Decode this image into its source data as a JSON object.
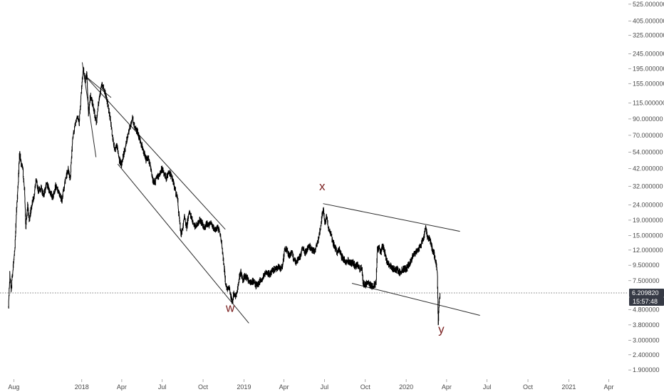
{
  "chart_data": {
    "type": "line",
    "title": "",
    "xlabel": "",
    "ylabel": "",
    "y_scale": "log",
    "ylim": [
      1.65,
      560
    ],
    "xlim": [
      "2017-07-01",
      "2021-05-15"
    ],
    "grid": false,
    "x_ticks": [
      {
        "label": "Aug",
        "date": "2017-08-01"
      },
      {
        "label": "2018",
        "date": "2018-01-01"
      },
      {
        "label": "Apr",
        "date": "2018-04-01"
      },
      {
        "label": "Jul",
        "date": "2018-07-01"
      },
      {
        "label": "Oct",
        "date": "2018-10-01"
      },
      {
        "label": "2019",
        "date": "2019-01-01"
      },
      {
        "label": "Apr",
        "date": "2019-04-01"
      },
      {
        "label": "Jul",
        "date": "2019-07-01"
      },
      {
        "label": "Oct",
        "date": "2019-10-01"
      },
      {
        "label": "2020",
        "date": "2020-01-01"
      },
      {
        "label": "Apr",
        "date": "2020-04-01"
      },
      {
        "label": "Jul",
        "date": "2020-07-01"
      },
      {
        "label": "Oct",
        "date": "2020-10-01"
      },
      {
        "label": "2021",
        "date": "2021-01-01"
      },
      {
        "label": "Apr",
        "date": "2021-04-01"
      }
    ],
    "y_ticks": [
      {
        "label": "525.000000",
        "value": 525
      },
      {
        "label": "405.000000",
        "value": 405
      },
      {
        "label": "325.000000",
        "value": 325
      },
      {
        "label": "245.000000",
        "value": 245
      },
      {
        "label": "195.000000",
        "value": 195
      },
      {
        "label": "155.000000",
        "value": 155
      },
      {
        "label": "115.000000",
        "value": 115
      },
      {
        "label": "90.000000",
        "value": 90
      },
      {
        "label": "70.000000",
        "value": 70
      },
      {
        "label": "54.000000",
        "value": 54
      },
      {
        "label": "42.000000",
        "value": 42
      },
      {
        "label": "32.000000",
        "value": 32
      },
      {
        "label": "24.000000",
        "value": 24
      },
      {
        "label": "19.000000",
        "value": 19
      },
      {
        "label": "15.000000",
        "value": 15
      },
      {
        "label": "12.000000",
        "value": 12
      },
      {
        "label": "9.500000",
        "value": 9.5
      },
      {
        "label": "7.500000",
        "value": 7.5
      },
      {
        "label": "4.800000",
        "value": 4.8
      },
      {
        "label": "3.800000",
        "value": 3.8
      },
      {
        "label": "3.000000",
        "value": 3.0
      },
      {
        "label": "2.400000",
        "value": 2.4
      },
      {
        "label": "1.900000",
        "value": 1.9
      }
    ],
    "series": [
      {
        "color": "#000000",
        "points": [
          [
            "2017-07-20",
            5.0
          ],
          [
            "2017-07-23",
            8.2
          ],
          [
            "2017-07-26",
            6.5
          ],
          [
            "2017-07-30",
            9.0
          ],
          [
            "2017-08-03",
            12.0
          ],
          [
            "2017-08-07",
            22.0
          ],
          [
            "2017-08-11",
            35.0
          ],
          [
            "2017-08-14",
            55.0
          ],
          [
            "2017-08-17",
            45.0
          ],
          [
            "2017-08-21",
            42.0
          ],
          [
            "2017-08-25",
            30.0
          ],
          [
            "2017-08-28",
            17.0
          ],
          [
            "2017-09-01",
            24.0
          ],
          [
            "2017-09-05",
            19.0
          ],
          [
            "2017-09-10",
            24.0
          ],
          [
            "2017-09-15",
            27.0
          ],
          [
            "2017-09-20",
            35.0
          ],
          [
            "2017-09-25",
            30.0
          ],
          [
            "2017-10-01",
            31.0
          ],
          [
            "2017-10-07",
            28.0
          ],
          [
            "2017-10-14",
            33.0
          ],
          [
            "2017-10-20",
            30.0
          ],
          [
            "2017-10-27",
            27.0
          ],
          [
            "2017-11-03",
            32.0
          ],
          [
            "2017-11-10",
            29.0
          ],
          [
            "2017-11-17",
            26.0
          ],
          [
            "2017-11-24",
            34.0
          ],
          [
            "2017-12-01",
            42.0
          ],
          [
            "2017-12-06",
            36.0
          ],
          [
            "2017-12-11",
            65.0
          ],
          [
            "2017-12-16",
            80.0
          ],
          [
            "2017-12-21",
            95.0
          ],
          [
            "2017-12-26",
            85.0
          ],
          [
            "2017-12-31",
            140.0
          ],
          [
            "2018-01-04",
            200.0
          ],
          [
            "2018-01-08",
            160.0
          ],
          [
            "2018-01-12",
            180.0
          ],
          [
            "2018-01-16",
            95.0
          ],
          [
            "2018-01-20",
            130.0
          ],
          [
            "2018-01-25",
            115.0
          ],
          [
            "2018-01-30",
            95.0
          ],
          [
            "2018-02-03",
            85.0
          ],
          [
            "2018-02-07",
            115.0
          ],
          [
            "2018-02-11",
            130.0
          ],
          [
            "2018-02-15",
            155.0
          ],
          [
            "2018-02-20",
            140.0
          ],
          [
            "2018-02-25",
            125.0
          ],
          [
            "2018-03-01",
            110.0
          ],
          [
            "2018-03-06",
            90.0
          ],
          [
            "2018-03-11",
            70.0
          ],
          [
            "2018-03-16",
            55.0
          ],
          [
            "2018-03-21",
            60.0
          ],
          [
            "2018-03-26",
            48.0
          ],
          [
            "2018-03-31",
            45.0
          ],
          [
            "2018-04-05",
            52.0
          ],
          [
            "2018-04-10",
            60.0
          ],
          [
            "2018-04-15",
            72.0
          ],
          [
            "2018-04-20",
            80.0
          ],
          [
            "2018-04-25",
            92.0
          ],
          [
            "2018-04-30",
            80.0
          ],
          [
            "2018-05-05",
            75.0
          ],
          [
            "2018-05-10",
            68.0
          ],
          [
            "2018-05-15",
            60.0
          ],
          [
            "2018-05-20",
            55.0
          ],
          [
            "2018-05-25",
            48.0
          ],
          [
            "2018-05-30",
            50.0
          ],
          [
            "2018-06-05",
            42.0
          ],
          [
            "2018-06-10",
            35.0
          ],
          [
            "2018-06-15",
            34.0
          ],
          [
            "2018-06-20",
            37.0
          ],
          [
            "2018-06-25",
            38.0
          ],
          [
            "2018-06-30",
            42.0
          ],
          [
            "2018-07-05",
            39.0
          ],
          [
            "2018-07-10",
            36.0
          ],
          [
            "2018-07-15",
            40.0
          ],
          [
            "2018-07-20",
            38.0
          ],
          [
            "2018-07-25",
            35.0
          ],
          [
            "2018-07-30",
            30.0
          ],
          [
            "2018-08-04",
            27.0
          ],
          [
            "2018-08-08",
            20.0
          ],
          [
            "2018-08-12",
            15.0
          ],
          [
            "2018-08-16",
            17.0
          ],
          [
            "2018-08-20",
            20.0
          ],
          [
            "2018-08-25",
            17.0
          ],
          [
            "2018-08-30",
            22.0
          ],
          [
            "2018-09-04",
            20.0
          ],
          [
            "2018-09-09",
            18.0
          ],
          [
            "2018-09-14",
            17.0
          ],
          [
            "2018-09-19",
            18.0
          ],
          [
            "2018-09-24",
            19.0
          ],
          [
            "2018-09-29",
            18.0
          ],
          [
            "2018-10-04",
            17.0
          ],
          [
            "2018-10-09",
            18.0
          ],
          [
            "2018-10-14",
            17.5
          ],
          [
            "2018-10-19",
            18.0
          ],
          [
            "2018-10-24",
            17.0
          ],
          [
            "2018-10-29",
            16.5
          ],
          [
            "2018-11-03",
            17.0
          ],
          [
            "2018-11-08",
            15.5
          ],
          [
            "2018-11-12",
            13.0
          ],
          [
            "2018-11-16",
            10.0
          ],
          [
            "2018-11-20",
            7.5
          ],
          [
            "2018-11-24",
            6.5
          ],
          [
            "2018-11-28",
            6.8
          ],
          [
            "2018-12-02",
            6.0
          ],
          [
            "2018-12-06",
            5.4
          ],
          [
            "2018-12-09",
            6.2
          ],
          [
            "2018-12-13",
            5.8
          ],
          [
            "2018-12-17",
            6.5
          ],
          [
            "2018-12-21",
            7.8
          ],
          [
            "2018-12-25",
            8.5
          ],
          [
            "2018-12-29",
            7.6
          ],
          [
            "2019-01-03",
            8.0
          ],
          [
            "2019-01-08",
            7.8
          ],
          [
            "2019-01-13",
            7.2
          ],
          [
            "2019-01-18",
            7.4
          ],
          [
            "2019-01-23",
            7.3
          ],
          [
            "2019-01-28",
            7.0
          ],
          [
            "2019-02-02",
            7.1
          ],
          [
            "2019-02-07",
            7.6
          ],
          [
            "2019-02-12",
            7.8
          ],
          [
            "2019-02-17",
            8.3
          ],
          [
            "2019-02-22",
            8.6
          ],
          [
            "2019-02-27",
            8.2
          ],
          [
            "2019-03-04",
            8.6
          ],
          [
            "2019-03-09",
            8.9
          ],
          [
            "2019-03-14",
            9.0
          ],
          [
            "2019-03-19",
            9.2
          ],
          [
            "2019-03-24",
            9.0
          ],
          [
            "2019-03-29",
            9.5
          ],
          [
            "2019-04-03",
            12.5
          ],
          [
            "2019-04-08",
            11.8
          ],
          [
            "2019-04-13",
            11.0
          ],
          [
            "2019-04-18",
            11.5
          ],
          [
            "2019-04-23",
            10.5
          ],
          [
            "2019-04-28",
            10.0
          ],
          [
            "2019-05-03",
            10.5
          ],
          [
            "2019-05-08",
            11.0
          ],
          [
            "2019-05-13",
            12.5
          ],
          [
            "2019-05-18",
            11.5
          ],
          [
            "2019-05-23",
            12.0
          ],
          [
            "2019-05-28",
            12.8
          ],
          [
            "2019-06-02",
            12.0
          ],
          [
            "2019-06-07",
            11.8
          ],
          [
            "2019-06-12",
            12.5
          ],
          [
            "2019-06-17",
            14.0
          ],
          [
            "2019-06-22",
            17.0
          ],
          [
            "2019-06-26",
            21.0
          ],
          [
            "2019-06-29",
            22.0
          ],
          [
            "2019-07-02",
            18.0
          ],
          [
            "2019-07-06",
            20.0
          ],
          [
            "2019-07-10",
            17.0
          ],
          [
            "2019-07-15",
            15.5
          ],
          [
            "2019-07-20",
            13.5
          ],
          [
            "2019-07-25",
            12.5
          ],
          [
            "2019-07-30",
            11.5
          ],
          [
            "2019-08-04",
            12.0
          ],
          [
            "2019-08-09",
            10.8
          ],
          [
            "2019-08-14",
            10.3
          ],
          [
            "2019-08-19",
            10.0
          ],
          [
            "2019-08-24",
            10.2
          ],
          [
            "2019-08-29",
            9.7
          ],
          [
            "2019-09-03",
            9.9
          ],
          [
            "2019-09-08",
            9.3
          ],
          [
            "2019-09-13",
            9.6
          ],
          [
            "2019-09-18",
            9.0
          ],
          [
            "2019-09-23",
            9.2
          ],
          [
            "2019-09-26",
            7.2
          ],
          [
            "2019-09-30",
            7.0
          ],
          [
            "2019-10-05",
            7.3
          ],
          [
            "2019-10-10",
            7.1
          ],
          [
            "2019-10-15",
            6.9
          ],
          [
            "2019-10-20",
            7.0
          ],
          [
            "2019-10-25",
            7.2
          ],
          [
            "2019-10-28",
            12.0
          ],
          [
            "2019-11-01",
            12.5
          ],
          [
            "2019-11-05",
            11.5
          ],
          [
            "2019-11-08",
            13.0
          ],
          [
            "2019-11-12",
            12.0
          ],
          [
            "2019-11-17",
            10.5
          ],
          [
            "2019-11-22",
            9.6
          ],
          [
            "2019-11-27",
            9.5
          ],
          [
            "2019-12-02",
            9.0
          ],
          [
            "2019-12-07",
            8.8
          ],
          [
            "2019-12-12",
            8.9
          ],
          [
            "2019-12-17",
            8.5
          ],
          [
            "2019-12-22",
            8.8
          ],
          [
            "2019-12-27",
            9.0
          ],
          [
            "2020-01-01",
            9.0
          ],
          [
            "2020-01-06",
            9.5
          ],
          [
            "2020-01-11",
            10.0
          ],
          [
            "2020-01-16",
            11.0
          ],
          [
            "2020-01-21",
            11.5
          ],
          [
            "2020-01-26",
            12.0
          ],
          [
            "2020-01-31",
            12.5
          ],
          [
            "2020-02-05",
            13.5
          ],
          [
            "2020-02-10",
            15.0
          ],
          [
            "2020-02-14",
            17.0
          ],
          [
            "2020-02-18",
            14.5
          ],
          [
            "2020-02-22",
            14.5
          ],
          [
            "2020-02-26",
            13.0
          ],
          [
            "2020-02-29",
            12.0
          ],
          [
            "2020-03-03",
            11.5
          ],
          [
            "2020-03-06",
            10.5
          ],
          [
            "2020-03-09",
            9.5
          ],
          [
            "2020-03-11",
            8.2
          ],
          [
            "2020-03-13",
            3.9
          ],
          [
            "2020-03-15",
            5.4
          ],
          [
            "2020-03-17",
            6.2
          ]
        ]
      }
    ],
    "trendlines": [
      {
        "from": [
          "2018-01-02",
          215
        ],
        "to": [
          "2018-02-02",
          50
        ]
      },
      {
        "from": [
          "2018-01-08",
          175
        ],
        "to": [
          "2018-03-08",
          125
        ]
      },
      {
        "from": [
          "2018-01-08",
          175
        ],
        "to": [
          "2018-11-20",
          16.5
        ]
      },
      {
        "from": [
          "2018-03-23",
          45
        ],
        "to": [
          "2019-01-12",
          3.9
        ]
      },
      {
        "from": [
          "2019-06-28",
          24.5
        ],
        "to": [
          "2020-05-01",
          16.0
        ]
      },
      {
        "from": [
          "2019-09-01",
          7.2
        ],
        "to": [
          "2020-06-15",
          4.4
        ]
      }
    ],
    "annotations": [
      {
        "text": "w",
        "date": "2018-12-01",
        "value": 4.65
      },
      {
        "text": "x",
        "date": "2019-06-26",
        "value": 30.0
      },
      {
        "text": "y",
        "date": "2020-03-20",
        "value": 3.35
      }
    ],
    "current_price": {
      "value": 6.20982,
      "label": "6.209820",
      "countdown": "15:57:48"
    },
    "colors": {
      "price": "#000000",
      "trendline": "#2b2b2b",
      "wave_label": "#7a1f1f",
      "badge": "#363a45",
      "dotted_line": "#555555",
      "axis_text": "#4a4a4a"
    }
  }
}
